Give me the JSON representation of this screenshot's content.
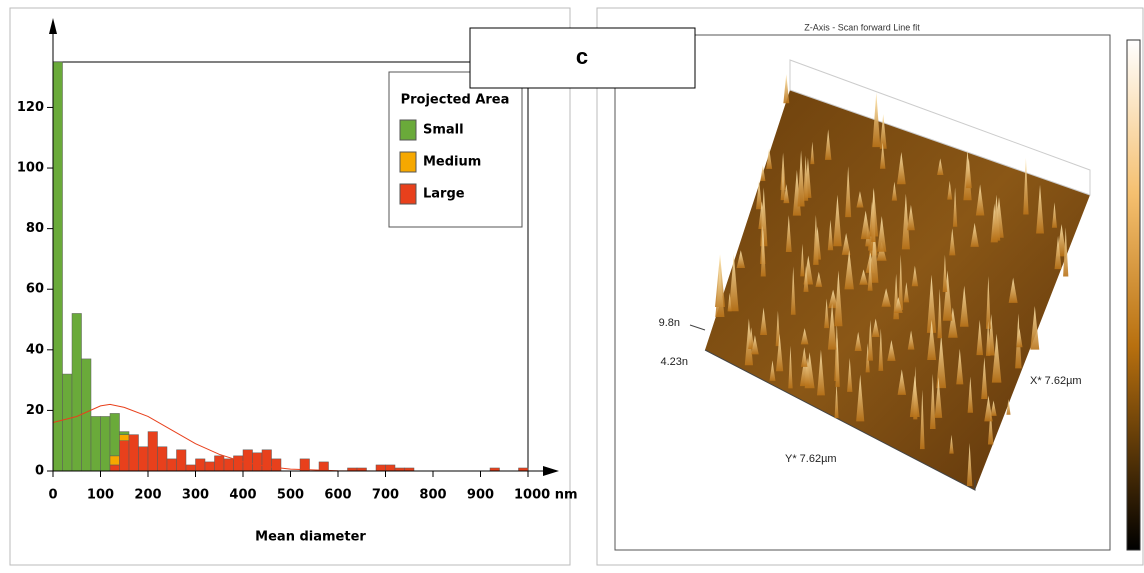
{
  "panel_label": "c",
  "chart_data": {
    "type": "histogram",
    "xlabel": "Mean diameter",
    "legend_title": "Projected Area",
    "legend_position": "upper right",
    "bins": [
      0,
      20,
      40,
      60,
      80,
      100,
      120,
      140,
      160,
      180,
      200,
      220,
      240,
      260,
      280,
      300,
      320,
      340,
      360,
      380,
      400,
      420,
      440,
      460,
      480,
      500,
      520,
      540,
      560,
      580,
      600,
      620,
      640,
      660,
      680,
      700,
      720,
      740,
      760,
      780,
      800,
      820,
      840,
      860,
      880,
      900,
      920,
      940,
      960,
      980,
      1000
    ],
    "series": [
      {
        "name": "Small",
        "color": "#6aaa3a",
        "values": [
          135,
          32,
          52,
          37,
          18,
          18,
          14,
          1,
          0,
          0,
          0,
          0,
          0,
          0,
          0,
          0,
          0,
          0,
          0,
          0,
          0,
          0,
          0,
          0,
          0,
          0,
          0,
          0,
          0,
          0,
          0,
          0,
          0,
          0,
          0,
          0,
          0,
          0,
          0,
          0,
          0,
          0,
          0,
          0,
          0,
          0,
          0,
          0,
          0,
          0
        ]
      },
      {
        "name": "Medium",
        "color": "#f6a800",
        "values": [
          0,
          0,
          0,
          0,
          0,
          0,
          3,
          2,
          0,
          0,
          0,
          0,
          0,
          0,
          0,
          0,
          0,
          0,
          0,
          0,
          0,
          0,
          0,
          0,
          0,
          0,
          0,
          0,
          0,
          0,
          0,
          0,
          0,
          0,
          0,
          0,
          0,
          0,
          0,
          0,
          0,
          0,
          0,
          0,
          0,
          0,
          0,
          0,
          0,
          0
        ]
      },
      {
        "name": "Large",
        "color": "#e8401c",
        "values": [
          0,
          0,
          0,
          0,
          0,
          0,
          2,
          10,
          12,
          8,
          13,
          8,
          4,
          7,
          2,
          4,
          3,
          5,
          4,
          5,
          7,
          6,
          7,
          4,
          0,
          0,
          4,
          0,
          3,
          0,
          0,
          1,
          1,
          0,
          2,
          2,
          1,
          1,
          0,
          0,
          0,
          0,
          0,
          0,
          0,
          0,
          1,
          0,
          0,
          1
        ]
      }
    ],
    "fit_curve": {
      "color": "#e8401c",
      "x": [
        0,
        50,
        100,
        120,
        150,
        200,
        250,
        300,
        350,
        400,
        450,
        500,
        600,
        700,
        1000
      ],
      "values": [
        16,
        18,
        21.5,
        22,
        21,
        18,
        13.5,
        9,
        5.5,
        3,
        1.5,
        0.6,
        0.1,
        0,
        0
      ]
    },
    "xlim": [
      0,
      1000
    ],
    "ylim": [
      0,
      135
    ],
    "xticks": [
      0,
      100,
      200,
      300,
      400,
      500,
      600,
      700,
      800,
      900,
      {
        "value": 1000,
        "label": "1000 nm"
      }
    ],
    "yticks": [
      0,
      20,
      40,
      60,
      80,
      100,
      120
    ]
  },
  "afm_image": {
    "title": "Z-Axis - Scan forward   Line fit",
    "z_max_label": "9.8n",
    "z_min_label": "4.23n",
    "x_label": "X* 7.62µm",
    "y_label": "Y* 7.62µm"
  }
}
